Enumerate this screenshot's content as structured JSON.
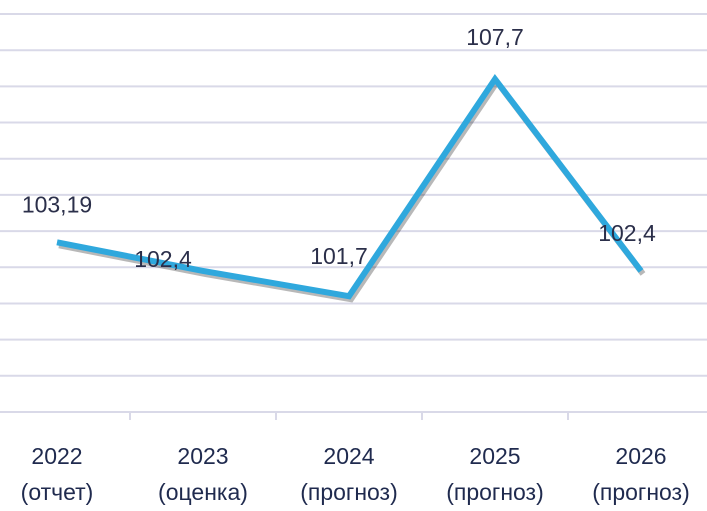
{
  "chart_data": {
    "type": "line",
    "title": "",
    "xlabel": "",
    "ylabel": "",
    "categories": [
      {
        "year": "2022",
        "note": "(отчет)"
      },
      {
        "year": "2023",
        "note": "(оценка)"
      },
      {
        "year": "2024",
        "note": "(прогноз)"
      },
      {
        "year": "2025",
        "note": "(прогноз)"
      },
      {
        "year": "2026",
        "note": "(прогноз)"
      }
    ],
    "series": [
      {
        "values": [
          103.19,
          102.4,
          101.7,
          107.7,
          102.4
        ],
        "labels": [
          "103,19",
          "102,4",
          "101,7",
          "107,7",
          "102,4"
        ]
      }
    ],
    "ylim": [
      98.5,
      109.5
    ],
    "grid": true,
    "legend": "none",
    "colors": {
      "series": "#2fa8dd",
      "grid": "#d9d9e8",
      "text": "#2b2f4a"
    }
  }
}
